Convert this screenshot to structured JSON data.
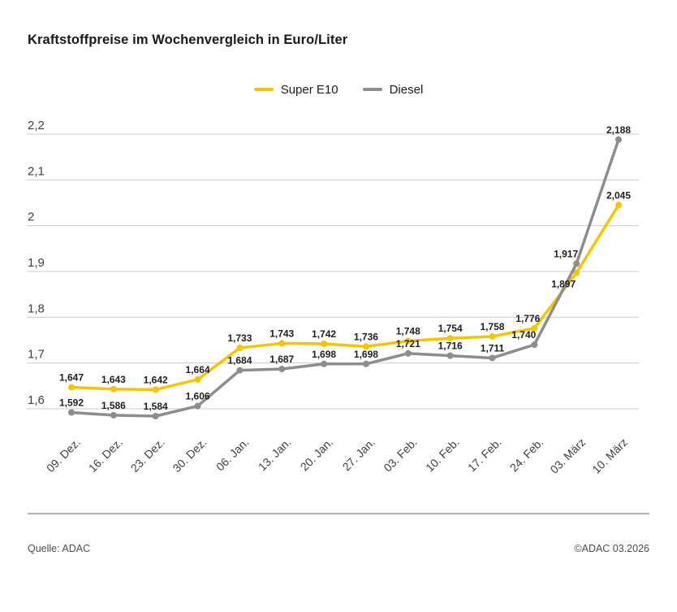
{
  "title": "Kraftstoffpreise im Wochenvergleich in Euro/Liter",
  "legend": [
    {
      "label": "Super E10",
      "color": "#f6c400"
    },
    {
      "label": "Diesel",
      "color": "#8d8d8d"
    }
  ],
  "footer": {
    "source": "Quelle: ADAC",
    "copyright": "©ADAC 03.2026"
  },
  "chart_data": {
    "type": "line",
    "title": "Kraftstoffpreise im Wochenvergleich in Euro/Liter",
    "xlabel": "",
    "ylabel": "Euro/Liter",
    "decimal_separator": ",",
    "grid": "horizontal",
    "legend_position": "top-center",
    "ylim": [
      1.55,
      2.2
    ],
    "y_ticks": [
      2.2,
      2.1,
      2,
      1.9,
      1.8,
      1.7,
      1.6
    ],
    "categories": [
      "09. Dez.",
      "16. Dez.",
      "23. Dez.",
      "30. Dez.",
      "06. Jan.",
      "13. Jan.",
      "20. Jan.",
      "27. Jan.",
      "03. Feb.",
      "10. Feb.",
      "17. Feb.",
      "24. Feb.",
      "03. März",
      "10. März"
    ],
    "series": [
      {
        "name": "Super E10",
        "color": "#f6c400",
        "values": [
          1.647,
          1.643,
          1.642,
          1.664,
          1.733,
          1.743,
          1.742,
          1.736,
          1.748,
          1.754,
          1.758,
          1.776,
          1.897,
          2.045
        ]
      },
      {
        "name": "Diesel",
        "color": "#8d8d8d",
        "values": [
          1.592,
          1.586,
          1.584,
          1.606,
          1.684,
          1.687,
          1.698,
          1.698,
          1.721,
          1.716,
          1.711,
          1.74,
          1.917,
          2.188
        ]
      }
    ],
    "label_offsets": {
      "Super E10": {
        "11": [
          -8,
          -8
        ],
        "12": [
          -16,
          18
        ]
      },
      "Diesel": {
        "11": [
          -13,
          -8
        ],
        "12": [
          -13,
          -8
        ]
      }
    }
  }
}
